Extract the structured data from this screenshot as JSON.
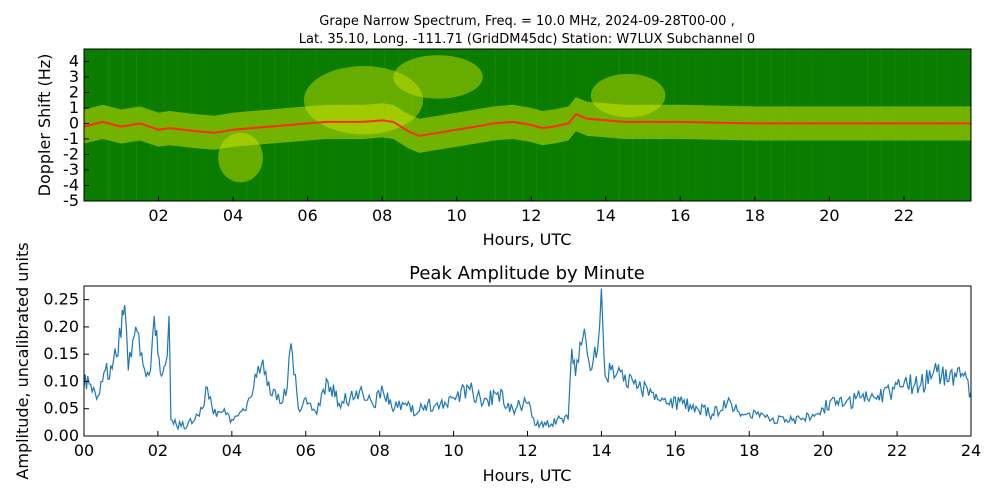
{
  "top_chart": {
    "title_line1": "Grape Narrow Spectrum, Freq. = 10.0 MHz, 2024-09-28T00-00 ,",
    "title_line2": "Lat.  35.10, Long. -111.71 (GridDM45dc) Station: W7LUX Subchannel 0",
    "xlabel": "Hours, UTC",
    "ylabel": "Doppler Shift (Hz)",
    "xticks": [
      2,
      4,
      6,
      8,
      10,
      12,
      14,
      16,
      18,
      20,
      22
    ],
    "xtick_labels": [
      "02",
      "04",
      "06",
      "08",
      "10",
      "12",
      "14",
      "16",
      "18",
      "20",
      "22"
    ],
    "yticks": [
      -5,
      -4,
      -3,
      -2,
      -1,
      0,
      1,
      2,
      3,
      4
    ],
    "ytick_labels": [
      "-5",
      "-4",
      "-3",
      "-2",
      "-1",
      "0",
      "1",
      "2",
      "3",
      "4"
    ]
  },
  "bottom_chart": {
    "title": "Peak Amplitude by Minute",
    "xlabel": "Hours, UTC",
    "ylabel": "Amplitude, uncalibrated units",
    "xtick_labels": [
      "00",
      "02",
      "04",
      "06",
      "08",
      "10",
      "12",
      "14",
      "16",
      "18",
      "20",
      "22",
      "24"
    ],
    "ytick_labels": [
      "0.00",
      "0.05",
      "0.10",
      "0.15",
      "0.20",
      "0.25"
    ]
  },
  "colors": {
    "spectrogram_background": "#0a7c00",
    "spectrogram_mid": "#c8e000",
    "spectrogram_peak": "#ff2a00",
    "amplitude_line": "#1f77b4"
  },
  "chart_data": [
    {
      "type": "heatmap",
      "x_unit": "hours UTC",
      "y_unit": "Hz",
      "xlim": [
        0,
        23.8
      ],
      "ylim": [
        -5,
        4.8
      ],
      "doppler_trace": {
        "x": [
          0,
          0.5,
          1,
          1.5,
          2,
          2.3,
          3,
          3.5,
          4,
          4.5,
          5,
          5.5,
          6,
          6.5,
          7,
          7.5,
          8,
          8.3,
          8.7,
          9,
          9.5,
          10,
          10.5,
          11,
          11.5,
          12,
          12.3,
          12.6,
          13,
          13.2,
          13.5,
          14,
          14.5,
          15,
          16,
          17,
          18,
          19,
          20,
          21,
          22,
          23,
          23.8
        ],
        "y": [
          -0.2,
          0.1,
          -0.2,
          0.0,
          -0.4,
          -0.3,
          -0.5,
          -0.6,
          -0.4,
          -0.3,
          -0.2,
          -0.1,
          0.0,
          0.1,
          0.1,
          0.1,
          0.2,
          0.1,
          -0.5,
          -0.8,
          -0.6,
          -0.4,
          -0.2,
          0.0,
          0.1,
          -0.1,
          -0.3,
          -0.2,
          0.0,
          0.6,
          0.3,
          0.2,
          0.1,
          0.1,
          0.1,
          0.05,
          0.0,
          0.0,
          0.0,
          0.0,
          0.0,
          0.0,
          0.0
        ]
      }
    },
    {
      "type": "line",
      "xlim": [
        0,
        24
      ],
      "ylim": [
        0,
        0.275
      ],
      "series": [
        {
          "x": [
            0,
            0.1,
            0.3,
            0.5,
            0.8,
            1.0,
            1.1,
            1.2,
            1.4,
            1.6,
            1.8,
            1.9,
            2.0,
            2.1,
            2.2,
            2.3,
            2.35,
            2.5,
            2.8,
            3.0,
            3.2,
            3.3,
            3.5,
            3.8,
            4.0,
            4.3,
            4.5,
            4.8,
            5.0,
            5.3,
            5.5,
            5.6,
            5.8,
            6.0,
            6.3,
            6.6,
            6.9,
            7.2,
            7.5,
            7.8,
            8.1,
            8.4,
            8.7,
            9.0,
            9.3,
            9.6,
            10.0,
            10.4,
            10.8,
            11.2,
            11.6,
            12.0,
            12.2,
            12.5,
            12.8,
            13.1,
            13.2,
            13.3,
            13.5,
            13.7,
            13.9,
            14.0,
            14.05,
            14.1,
            14.3,
            14.6,
            15.0,
            15.4,
            15.8,
            16.2,
            16.6,
            17.0,
            17.4,
            17.8,
            18.2,
            18.6,
            19.0,
            19.4,
            19.8,
            20.0,
            20.3,
            20.6,
            21.0,
            21.4,
            21.8,
            22.2,
            22.6,
            23.0,
            23.4,
            23.8,
            24.0
          ],
          "y": [
            0.09,
            0.11,
            0.08,
            0.1,
            0.14,
            0.18,
            0.24,
            0.12,
            0.2,
            0.13,
            0.12,
            0.22,
            0.15,
            0.11,
            0.13,
            0.22,
            0.03,
            0.02,
            0.02,
            0.03,
            0.05,
            0.09,
            0.04,
            0.05,
            0.03,
            0.05,
            0.07,
            0.13,
            0.1,
            0.06,
            0.09,
            0.17,
            0.05,
            0.07,
            0.04,
            0.1,
            0.06,
            0.07,
            0.09,
            0.06,
            0.08,
            0.05,
            0.06,
            0.04,
            0.06,
            0.05,
            0.07,
            0.09,
            0.06,
            0.08,
            0.05,
            0.06,
            0.02,
            0.02,
            0.03,
            0.03,
            0.16,
            0.11,
            0.18,
            0.12,
            0.16,
            0.27,
            0.18,
            0.11,
            0.13,
            0.1,
            0.09,
            0.08,
            0.06,
            0.06,
            0.05,
            0.04,
            0.06,
            0.04,
            0.04,
            0.03,
            0.03,
            0.03,
            0.04,
            0.05,
            0.07,
            0.06,
            0.07,
            0.07,
            0.08,
            0.1,
            0.09,
            0.12,
            0.1,
            0.11,
            0.08
          ]
        }
      ]
    }
  ]
}
